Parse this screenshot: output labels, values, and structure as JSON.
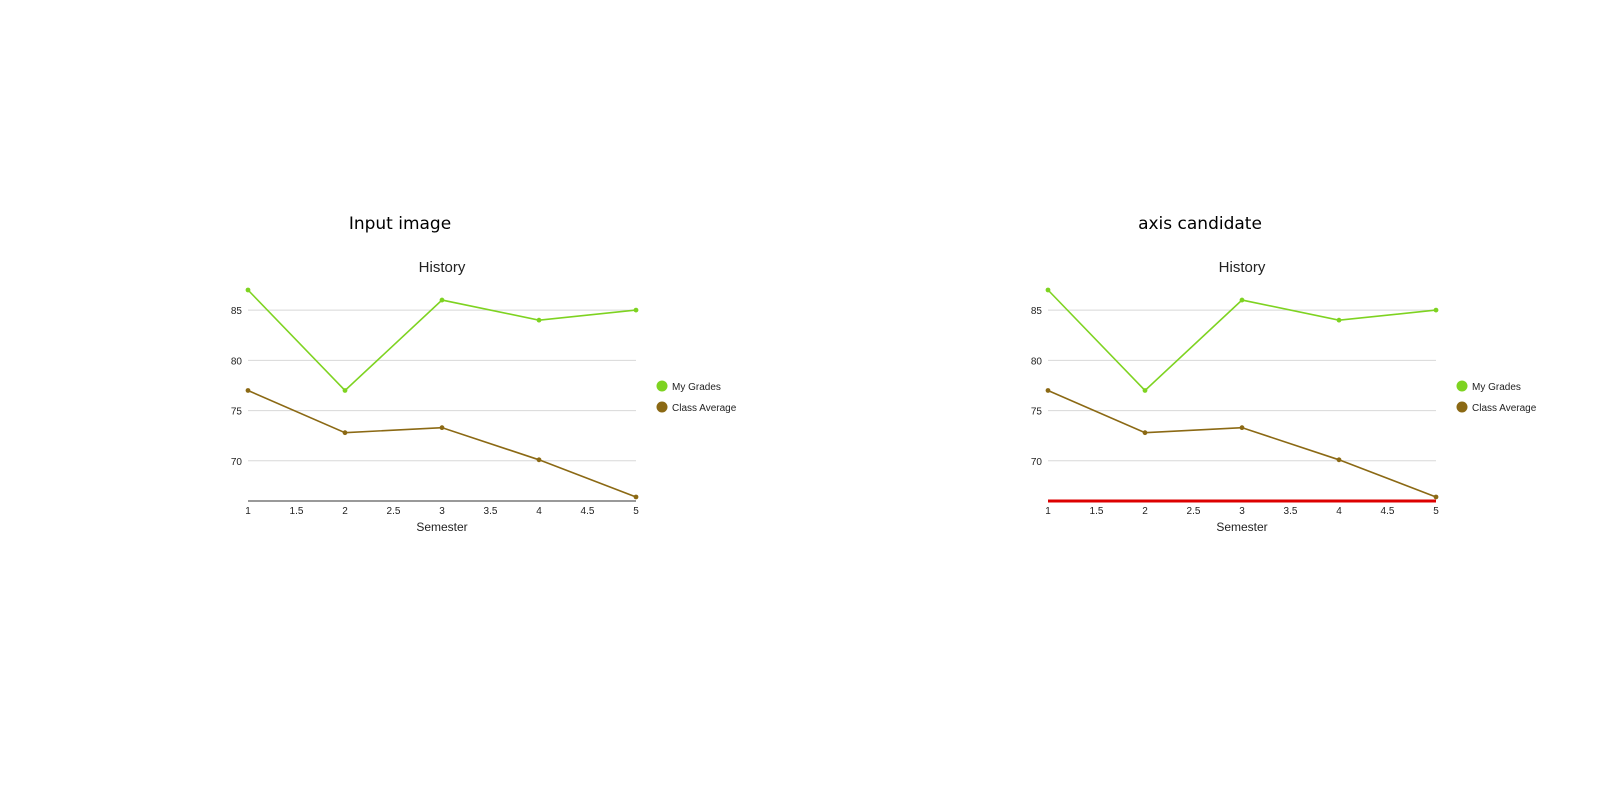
{
  "panels": [
    {
      "heading": "Input image",
      "highlight_axis": false,
      "chart_data": {
        "type": "line",
        "title": "History",
        "xlabel": "Semester",
        "ylabel": "",
        "x": [
          1,
          2,
          3,
          4,
          5
        ],
        "xlim": [
          1,
          5
        ],
        "ylim": [
          66,
          87
        ],
        "x_ticks": [
          "1",
          "1.5",
          "2",
          "2.5",
          "3",
          "3.5",
          "4",
          "4.5",
          "5"
        ],
        "y_ticks": [
          "70",
          "75",
          "80",
          "85"
        ],
        "grid": true,
        "legend_position": "right",
        "series": [
          {
            "name": "My Grades",
            "color": "#7ed321",
            "values": [
              87,
              77,
              86,
              84,
              85
            ]
          },
          {
            "name": "Class Average",
            "color": "#8b6914",
            "values": [
              77,
              72.8,
              73.3,
              70.1,
              66.4
            ]
          }
        ]
      }
    },
    {
      "heading": "axis candidate",
      "highlight_axis": true,
      "highlight_color": "#dd0000",
      "chart_data": {
        "type": "line",
        "title": "History",
        "xlabel": "Semester",
        "ylabel": "",
        "x": [
          1,
          2,
          3,
          4,
          5
        ],
        "xlim": [
          1,
          5
        ],
        "ylim": [
          66,
          87
        ],
        "x_ticks": [
          "1",
          "1.5",
          "2",
          "2.5",
          "3",
          "3.5",
          "4",
          "4.5",
          "5"
        ],
        "y_ticks": [
          "70",
          "75",
          "80",
          "85"
        ],
        "grid": true,
        "legend_position": "right",
        "series": [
          {
            "name": "My Grades",
            "color": "#7ed321",
            "values": [
              87,
              77,
              86,
              84,
              85
            ]
          },
          {
            "name": "Class Average",
            "color": "#8b6914",
            "values": [
              77,
              72.8,
              73.3,
              70.1,
              66.4
            ]
          }
        ]
      }
    }
  ]
}
